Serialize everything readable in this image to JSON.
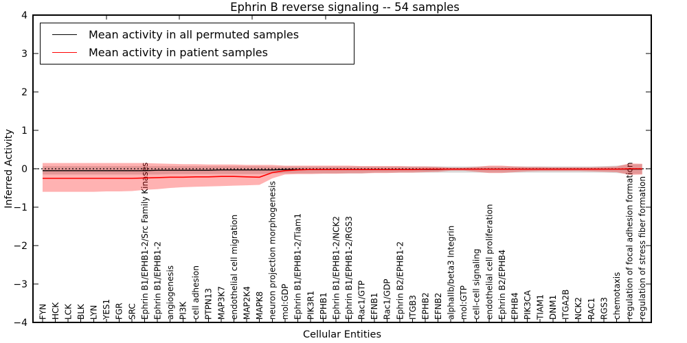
{
  "title": "Ephrin B reverse signaling -- 54 samples",
  "axes": {
    "x_label": "Cellular Entities",
    "y_label": "Inferred Activity",
    "y_tick_labels": [
      "4",
      "3",
      "2",
      "1",
      "0",
      "−1",
      "−2",
      "−3",
      "−4"
    ]
  },
  "legend": [
    {
      "label": "Mean activity in all permuted samples",
      "color": "#000000"
    },
    {
      "label": "Mean activity in patient samples",
      "color": "#ff0000"
    }
  ],
  "colors": {
    "patient_line": "#ff0000",
    "permuted_line": "#000000",
    "patient_band": "rgba(255,0,0,0.30)",
    "permuted_band": "rgba(0,0,0,0.15)"
  },
  "chart_data": {
    "type": "line",
    "title": "Ephrin B reverse signaling -- 54 samples",
    "xlabel": "Cellular Entities",
    "ylabel": "Inferred Activity",
    "ylim": [
      -4,
      4
    ],
    "yticks": [
      4,
      3,
      2,
      1,
      0,
      -1,
      -2,
      -3,
      -4
    ],
    "grid": false,
    "legend_position": "upper left",
    "zero_reference_line": {
      "y": 0,
      "style": "dotted",
      "color": "#000000"
    },
    "categories": [
      "FYN",
      "HCK",
      "LCK",
      "BLK",
      "LYN",
      "YES1",
      "FGR",
      "SRC",
      "Ephrin B1/EPHB1-2/Src Family Kinases",
      "Ephrin B1/EPHB1-2",
      "angiogenesis",
      "PI3K",
      "cell adhesion",
      "PTPN13",
      "MAP3K7",
      "endothelial cell migration",
      "MAP2K4",
      "MAPK8",
      "neuron projection morphogenesis",
      "mol:GDP",
      "Ephrin B1/EPHB1-2/Tiam1",
      "PIK3R1",
      "EPHB1",
      "Ephrin B1/EPHB1-2/NCK2",
      "Ephrin B1/EPHB1-2/RGS3",
      "Rac1/GTP",
      "EFNB1",
      "Rac1/GDP",
      "Ephrin B2/EPHB1-2",
      "ITGB3",
      "EPHB2",
      "EFNB2",
      "alphaIIb/beta3 Integrin",
      "mol:GTP",
      "cell-cell signaling",
      "endothelial cell proliferation",
      "Ephrin B2/EPHB4",
      "EPHB4",
      "PIK3CA",
      "TIAM1",
      "DNM1",
      "ITGA2B",
      "NCK2",
      "RAC1",
      "RGS3",
      "chemotaxis",
      "regulation of focal adhesion formation",
      "regulation of stress fiber formation"
    ],
    "series": [
      {
        "name": "Mean activity in all permuted samples",
        "color": "#000000",
        "values": [
          -0.05,
          -0.05,
          -0.05,
          -0.05,
          -0.05,
          -0.05,
          -0.05,
          -0.05,
          -0.05,
          -0.04,
          -0.04,
          -0.04,
          -0.04,
          -0.04,
          -0.03,
          -0.03,
          -0.03,
          -0.03,
          -0.03,
          -0.02,
          -0.02,
          -0.02,
          -0.02,
          -0.02,
          -0.02,
          -0.02,
          -0.02,
          -0.02,
          -0.02,
          -0.02,
          -0.02,
          -0.02,
          -0.01,
          -0.01,
          -0.01,
          -0.01,
          -0.01,
          -0.01,
          -0.01,
          -0.01,
          -0.01,
          -0.01,
          -0.01,
          -0.01,
          -0.01,
          -0.01,
          -0.01,
          -0.01
        ]
      },
      {
        "name": "Mean activity in patient samples",
        "color": "#ff0000",
        "values": [
          -0.25,
          -0.25,
          -0.25,
          -0.25,
          -0.25,
          -0.25,
          -0.25,
          -0.25,
          -0.24,
          -0.23,
          -0.22,
          -0.22,
          -0.21,
          -0.21,
          -0.2,
          -0.2,
          -0.21,
          -0.22,
          -0.1,
          -0.05,
          -0.03,
          -0.02,
          -0.02,
          -0.02,
          -0.02,
          -0.02,
          -0.02,
          -0.02,
          -0.02,
          -0.02,
          -0.01,
          -0.01,
          -0.01,
          -0.01,
          -0.01,
          -0.01,
          -0.01,
          -0.01,
          -0.01,
          -0.01,
          -0.01,
          -0.01,
          -0.01,
          -0.01,
          -0.01,
          -0.01,
          0.0,
          0.0
        ]
      }
    ],
    "bands": [
      {
        "name": "permuted samples range",
        "color": "rgba(0,0,0,0.15)",
        "upper": [
          0.07,
          0.07,
          0.07,
          0.07,
          0.07,
          0.07,
          0.07,
          0.07,
          0.07,
          0.07,
          0.07,
          0.07,
          0.07,
          0.07,
          0.07,
          0.07,
          0.07,
          0.07,
          0.06,
          0.06,
          0.06,
          0.06,
          0.06,
          0.06,
          0.06,
          0.06,
          0.06,
          0.06,
          0.06,
          0.06,
          0.06,
          0.06,
          0.06,
          0.06,
          0.06,
          0.06,
          0.06,
          0.06,
          0.06,
          0.06,
          0.06,
          0.06,
          0.06,
          0.06,
          0.07,
          0.08,
          0.11,
          0.12
        ],
        "lower": [
          -0.15,
          -0.15,
          -0.15,
          -0.15,
          -0.15,
          -0.15,
          -0.15,
          -0.15,
          -0.15,
          -0.15,
          -0.14,
          -0.14,
          -0.14,
          -0.14,
          -0.14,
          -0.14,
          -0.14,
          -0.14,
          -0.12,
          -0.12,
          -0.12,
          -0.12,
          -0.12,
          -0.12,
          -0.12,
          -0.12,
          -0.1,
          -0.1,
          -0.1,
          -0.1,
          -0.1,
          -0.1,
          -0.1,
          -0.1,
          -0.1,
          -0.1,
          -0.1,
          -0.1,
          -0.1,
          -0.1,
          -0.1,
          -0.1,
          -0.1,
          -0.1,
          -0.1,
          -0.11,
          -0.13,
          -0.14
        ]
      },
      {
        "name": "patient samples range",
        "color": "rgba(255,0,0,0.30)",
        "upper": [
          0.15,
          0.15,
          0.15,
          0.15,
          0.15,
          0.15,
          0.15,
          0.15,
          0.15,
          0.14,
          0.13,
          0.12,
          0.12,
          0.11,
          0.11,
          0.11,
          0.1,
          0.1,
          0.1,
          0.08,
          0.08,
          0.08,
          0.08,
          0.08,
          0.08,
          0.07,
          0.07,
          0.07,
          0.07,
          0.06,
          0.06,
          0.05,
          0.03,
          0.03,
          0.05,
          0.08,
          0.08,
          0.06,
          0.05,
          0.05,
          0.04,
          0.04,
          0.04,
          0.04,
          0.05,
          0.06,
          0.14,
          0.13
        ],
        "lower": [
          -0.6,
          -0.6,
          -0.6,
          -0.6,
          -0.6,
          -0.59,
          -0.59,
          -0.58,
          -0.55,
          -0.53,
          -0.5,
          -0.48,
          -0.47,
          -0.46,
          -0.45,
          -0.44,
          -0.43,
          -0.42,
          -0.25,
          -0.15,
          -0.14,
          -0.14,
          -0.13,
          -0.13,
          -0.12,
          -0.12,
          -0.11,
          -0.11,
          -0.1,
          -0.1,
          -0.09,
          -0.08,
          -0.05,
          -0.05,
          -0.08,
          -0.11,
          -0.11,
          -0.09,
          -0.07,
          -0.06,
          -0.06,
          -0.06,
          -0.06,
          -0.07,
          -0.08,
          -0.09,
          -0.16,
          -0.15
        ]
      }
    ]
  }
}
